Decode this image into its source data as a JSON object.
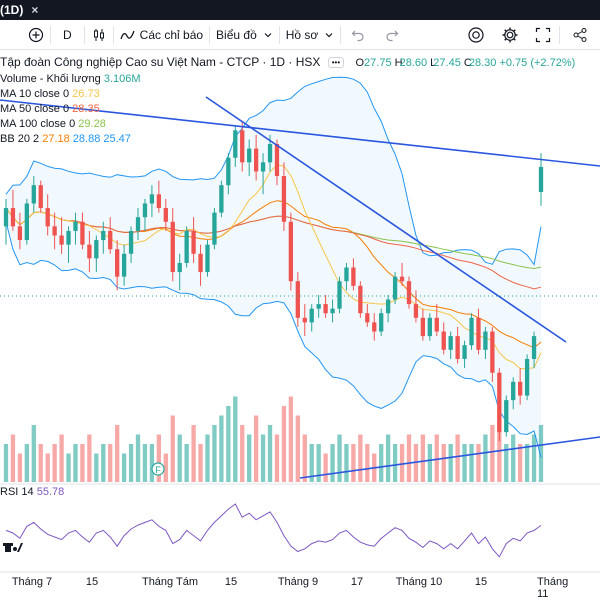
{
  "window": {
    "title": "(1D)",
    "close_glyph": "×"
  },
  "toolbar": {
    "interval": "D",
    "indicators_label": "Các chỉ báo",
    "chart_type_label": "Biểu đồ",
    "profile_label": "Hồ sơ"
  },
  "symbol": {
    "name": "Tập đoàn Công nghiệp Cao su Việt Nam - CTCP · 1D · HSX",
    "more_glyph": "•••",
    "open_label": "O",
    "open": "27.75",
    "high_label": "H",
    "high": "28.60",
    "low_label": "L",
    "low": "27.45",
    "close_label": "C",
    "close": "28.30",
    "change": "+0.75 (+2.72%)"
  },
  "indicators": {
    "volume": {
      "label": "Volume - Khối lượng",
      "value": "3.106M",
      "color": "#26a69a"
    },
    "ma10": {
      "label": "MA 10 close 0",
      "value": "26.73",
      "color": "#f7c548"
    },
    "ma50": {
      "label": "MA 50 close 0",
      "value": "28.35",
      "color": "#f06548"
    },
    "ma100": {
      "label": "MA 100 close 0",
      "value": "29.28",
      "color": "#8bc34a"
    },
    "bb": {
      "label": "BB 20 2",
      "basis": "27.18",
      "upper": "28.88",
      "lower": "25.47",
      "basis_color": "#f57c00",
      "band_color": "#2196f3"
    },
    "rsi": {
      "label": "RSI 14",
      "value": "55.78",
      "color": "#7e57c2"
    }
  },
  "xaxis": [
    "Tháng 7",
    "15",
    "Tháng Tám",
    "15",
    "Tháng 9",
    "17",
    "Tháng 10",
    "15",
    "Tháng 11"
  ],
  "colors": {
    "up": "#26a69a",
    "down": "#ef5350",
    "trend": "#2a56e0",
    "bg": "#ffffff"
  },
  "chart_data": {
    "type": "candlestick",
    "candles": [
      {
        "o": 27.0,
        "h": 27.6,
        "l": 26.6,
        "c": 27.4
      },
      {
        "o": 27.4,
        "h": 27.8,
        "l": 26.9,
        "c": 27.0
      },
      {
        "o": 27.0,
        "h": 27.3,
        "l": 26.5,
        "c": 26.7
      },
      {
        "o": 26.7,
        "h": 27.6,
        "l": 26.6,
        "c": 27.5
      },
      {
        "o": 27.5,
        "h": 28.1,
        "l": 27.3,
        "c": 27.9
      },
      {
        "o": 27.9,
        "h": 28.0,
        "l": 27.3,
        "c": 27.4
      },
      {
        "o": 27.4,
        "h": 27.7,
        "l": 26.8,
        "c": 27.0
      },
      {
        "o": 27.0,
        "h": 27.3,
        "l": 26.5,
        "c": 26.8
      },
      {
        "o": 26.8,
        "h": 27.2,
        "l": 26.4,
        "c": 26.6
      },
      {
        "o": 26.6,
        "h": 27.0,
        "l": 26.2,
        "c": 26.9
      },
      {
        "o": 26.9,
        "h": 27.3,
        "l": 26.6,
        "c": 27.1
      },
      {
        "o": 27.1,
        "h": 27.3,
        "l": 26.5,
        "c": 26.6
      },
      {
        "o": 26.6,
        "h": 26.9,
        "l": 26.0,
        "c": 26.3
      },
      {
        "o": 26.3,
        "h": 26.8,
        "l": 26.0,
        "c": 26.7
      },
      {
        "o": 26.7,
        "h": 27.1,
        "l": 26.4,
        "c": 26.9
      },
      {
        "o": 26.9,
        "h": 27.2,
        "l": 26.4,
        "c": 26.5
      },
      {
        "o": 26.5,
        "h": 26.7,
        "l": 25.6,
        "c": 25.9
      },
      {
        "o": 25.9,
        "h": 26.6,
        "l": 25.7,
        "c": 26.4
      },
      {
        "o": 26.4,
        "h": 27.0,
        "l": 26.2,
        "c": 26.9
      },
      {
        "o": 26.9,
        "h": 27.4,
        "l": 26.7,
        "c": 27.2
      },
      {
        "o": 27.2,
        "h": 27.6,
        "l": 26.9,
        "c": 27.5
      },
      {
        "o": 27.5,
        "h": 27.9,
        "l": 27.2,
        "c": 27.7
      },
      {
        "o": 27.7,
        "h": 28.0,
        "l": 27.3,
        "c": 27.4
      },
      {
        "o": 27.4,
        "h": 27.6,
        "l": 26.9,
        "c": 27.1
      },
      {
        "o": 27.1,
        "h": 27.4,
        "l": 25.8,
        "c": 26.0
      },
      {
        "o": 26.0,
        "h": 26.4,
        "l": 25.6,
        "c": 26.2
      },
      {
        "o": 26.2,
        "h": 27.0,
        "l": 26.1,
        "c": 26.9
      },
      {
        "o": 26.9,
        "h": 27.2,
        "l": 26.2,
        "c": 26.4
      },
      {
        "o": 26.4,
        "h": 26.6,
        "l": 25.7,
        "c": 26.0
      },
      {
        "o": 26.0,
        "h": 26.7,
        "l": 25.9,
        "c": 26.6
      },
      {
        "o": 26.6,
        "h": 27.4,
        "l": 26.5,
        "c": 27.3
      },
      {
        "o": 27.3,
        "h": 28.0,
        "l": 27.2,
        "c": 27.9
      },
      {
        "o": 27.9,
        "h": 28.6,
        "l": 27.7,
        "c": 28.5
      },
      {
        "o": 28.5,
        "h": 29.2,
        "l": 28.3,
        "c": 29.1
      },
      {
        "o": 29.1,
        "h": 29.3,
        "l": 28.2,
        "c": 28.4
      },
      {
        "o": 28.4,
        "h": 28.9,
        "l": 28.1,
        "c": 28.7
      },
      {
        "o": 28.7,
        "h": 29.0,
        "l": 28.0,
        "c": 28.2
      },
      {
        "o": 28.2,
        "h": 28.6,
        "l": 27.7,
        "c": 28.4
      },
      {
        "o": 28.4,
        "h": 29.0,
        "l": 28.2,
        "c": 28.8
      },
      {
        "o": 28.8,
        "h": 28.9,
        "l": 27.9,
        "c": 28.1
      },
      {
        "o": 28.1,
        "h": 28.4,
        "l": 26.9,
        "c": 27.1
      },
      {
        "o": 27.1,
        "h": 27.3,
        "l": 25.6,
        "c": 25.8
      },
      {
        "o": 25.8,
        "h": 26.0,
        "l": 24.8,
        "c": 25.0
      },
      {
        "o": 25.0,
        "h": 25.3,
        "l": 24.6,
        "c": 24.9
      },
      {
        "o": 24.9,
        "h": 25.3,
        "l": 24.7,
        "c": 25.2
      },
      {
        "o": 25.2,
        "h": 25.5,
        "l": 25.0,
        "c": 25.3
      },
      {
        "o": 25.3,
        "h": 25.5,
        "l": 25.0,
        "c": 25.1
      },
      {
        "o": 25.1,
        "h": 25.4,
        "l": 24.9,
        "c": 25.2
      },
      {
        "o": 25.2,
        "h": 25.9,
        "l": 25.1,
        "c": 25.8
      },
      {
        "o": 25.8,
        "h": 26.2,
        "l": 25.6,
        "c": 26.1
      },
      {
        "o": 26.1,
        "h": 26.3,
        "l": 25.6,
        "c": 25.7
      },
      {
        "o": 25.7,
        "h": 25.8,
        "l": 25.0,
        "c": 25.1
      },
      {
        "o": 25.1,
        "h": 25.3,
        "l": 24.8,
        "c": 24.9
      },
      {
        "o": 24.9,
        "h": 25.1,
        "l": 24.5,
        "c": 24.7
      },
      {
        "o": 24.7,
        "h": 25.2,
        "l": 24.6,
        "c": 25.1
      },
      {
        "o": 25.1,
        "h": 25.5,
        "l": 24.9,
        "c": 25.4
      },
      {
        "o": 25.4,
        "h": 26.0,
        "l": 25.3,
        "c": 25.9
      },
      {
        "o": 25.9,
        "h": 26.2,
        "l": 25.7,
        "c": 25.8
      },
      {
        "o": 25.8,
        "h": 25.9,
        "l": 25.2,
        "c": 25.3
      },
      {
        "o": 25.3,
        "h": 25.6,
        "l": 24.9,
        "c": 25.0
      },
      {
        "o": 25.0,
        "h": 25.2,
        "l": 24.5,
        "c": 24.6
      },
      {
        "o": 24.6,
        "h": 25.1,
        "l": 24.5,
        "c": 25.0
      },
      {
        "o": 25.0,
        "h": 25.3,
        "l": 24.6,
        "c": 24.7
      },
      {
        "o": 24.7,
        "h": 24.9,
        "l": 24.2,
        "c": 24.3
      },
      {
        "o": 24.3,
        "h": 24.7,
        "l": 24.1,
        "c": 24.6
      },
      {
        "o": 24.6,
        "h": 24.8,
        "l": 24.0,
        "c": 24.1
      },
      {
        "o": 24.1,
        "h": 24.5,
        "l": 23.9,
        "c": 24.4
      },
      {
        "o": 24.4,
        "h": 25.1,
        "l": 24.3,
        "c": 25.0
      },
      {
        "o": 25.0,
        "h": 25.2,
        "l": 24.2,
        "c": 24.3
      },
      {
        "o": 24.3,
        "h": 24.8,
        "l": 24.1,
        "c": 24.7
      },
      {
        "o": 24.7,
        "h": 24.8,
        "l": 23.6,
        "c": 23.8
      },
      {
        "o": 23.8,
        "h": 23.9,
        "l": 22.3,
        "c": 22.5
      },
      {
        "o": 22.5,
        "h": 23.3,
        "l": 22.4,
        "c": 23.2
      },
      {
        "o": 23.2,
        "h": 23.7,
        "l": 23.0,
        "c": 23.6
      },
      {
        "o": 23.6,
        "h": 23.9,
        "l": 23.1,
        "c": 23.3
      },
      {
        "o": 23.3,
        "h": 24.2,
        "l": 23.2,
        "c": 24.1
      },
      {
        "o": 24.1,
        "h": 24.7,
        "l": 23.9,
        "c": 24.6
      },
      {
        "o": 27.75,
        "h": 28.6,
        "l": 27.45,
        "c": 28.3
      }
    ],
    "volume": [
      4,
      5,
      3,
      4,
      6,
      4,
      3,
      4,
      5,
      3,
      4,
      4,
      5,
      3,
      4,
      4,
      6,
      3,
      4,
      5,
      4,
      4,
      5,
      3,
      7,
      5,
      4,
      6,
      4,
      5,
      6,
      7,
      8,
      9,
      6,
      5,
      7,
      5,
      6,
      5,
      8,
      9,
      7,
      5,
      4,
      4,
      3,
      4,
      5,
      4,
      4,
      5,
      4,
      3,
      4,
      5,
      4,
      4,
      5,
      4,
      5,
      4,
      5,
      4,
      4,
      5,
      4,
      4,
      4,
      5,
      6,
      7,
      4,
      5,
      4,
      4,
      5,
      6
    ],
    "rsi": [
      52,
      50,
      46,
      55,
      58,
      53,
      49,
      47,
      45,
      50,
      52,
      47,
      43,
      50,
      52,
      47,
      40,
      48,
      53,
      56,
      58,
      60,
      55,
      52,
      42,
      45,
      52,
      48,
      44,
      52,
      58,
      63,
      68,
      72,
      62,
      65,
      60,
      63,
      66,
      58,
      48,
      40,
      36,
      38,
      42,
      44,
      43,
      45,
      50,
      52,
      47,
      43,
      41,
      40,
      46,
      50,
      54,
      52,
      46,
      43,
      39,
      44,
      42,
      38,
      42,
      38,
      44,
      50,
      42,
      47,
      38,
      32,
      42,
      46,
      44,
      50,
      52,
      55.78
    ],
    "x_labels": [
      "Tháng 7",
      "15",
      "Tháng Tám",
      "15",
      "Tháng 9",
      "17",
      "Tháng 10",
      "15",
      "Tháng 11"
    ]
  }
}
